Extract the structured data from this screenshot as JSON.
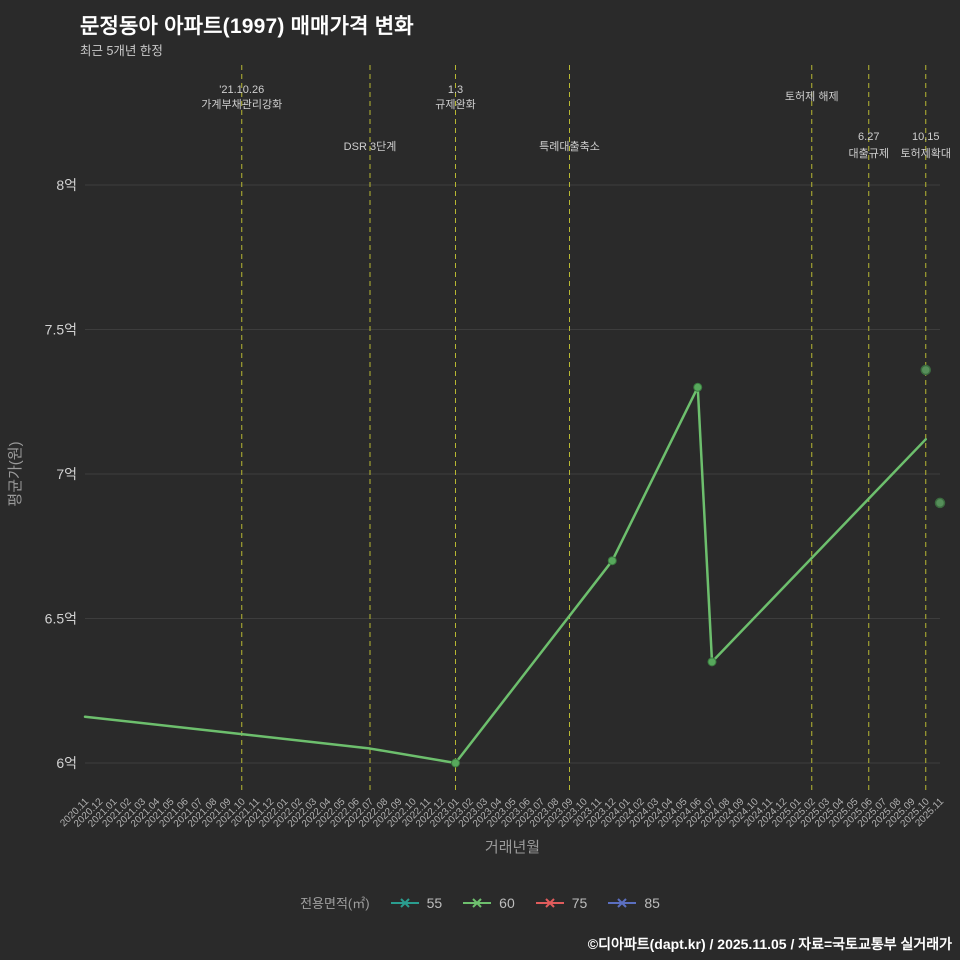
{
  "header": {
    "title": "문정동아 아파트(1997) 매매가격 변화",
    "subtitle": "최근 5개년 한정"
  },
  "footer": {
    "credit": "©디아파트(dapt.kr) / 2025.11.05 / 자료=국토교통부 실거래가"
  },
  "legend": {
    "label": "전용면적(㎡)",
    "position": "bottom",
    "items": [
      {
        "label": "55",
        "color": "#2a9d8f"
      },
      {
        "label": "60",
        "color": "#6dbf6d"
      },
      {
        "label": "75",
        "color": "#e05c5c"
      },
      {
        "label": "85",
        "color": "#5b6fc0"
      }
    ]
  },
  "chart_data": {
    "type": "line",
    "title": "문정동아 아파트(1997) 매매가격 변화",
    "subtitle": "최근 5개년 한정",
    "xlabel": "거래년월",
    "ylabel": "평균가(원)",
    "ylim": [
      5.9,
      8.2
    ],
    "grid": true,
    "yticks": [
      {
        "value": 6.0,
        "label": "6억"
      },
      {
        "value": 6.5,
        "label": "6.5억"
      },
      {
        "value": 7.0,
        "label": "7억"
      },
      {
        "value": 7.5,
        "label": "7.5억"
      },
      {
        "value": 8.0,
        "label": "8억"
      }
    ],
    "x_categories": [
      "2020.11",
      "2020.12",
      "2021.01",
      "2021.02",
      "2021.03",
      "2021.04",
      "2021.05",
      "2021.06",
      "2021.07",
      "2021.08",
      "2021.09",
      "2021.10",
      "2021.11",
      "2021.12",
      "2022.01",
      "2022.02",
      "2022.03",
      "2022.04",
      "2022.05",
      "2022.06",
      "2022.07",
      "2022.08",
      "2022.09",
      "2022.10",
      "2022.11",
      "2022.12",
      "2023.01",
      "2023.02",
      "2023.03",
      "2023.04",
      "2023.05",
      "2023.06",
      "2023.07",
      "2023.08",
      "2023.09",
      "2023.10",
      "2023.11",
      "2023.12",
      "2024.01",
      "2024.02",
      "2024.03",
      "2024.04",
      "2024.05",
      "2024.06",
      "2024.07",
      "2024.08",
      "2024.09",
      "2024.10",
      "2024.11",
      "2024.12",
      "2025.01",
      "2025.02",
      "2025.03",
      "2025.04",
      "2025.05",
      "2025.06",
      "2025.07",
      "2025.08",
      "2025.09",
      "2025.10",
      "2025.11"
    ],
    "series": [
      {
        "name": "60",
        "color": "#6dbf6d",
        "marker_fill": "#57a85c",
        "marker_stroke": "#3a7a3f",
        "points": [
          [
            "2020.11",
            6.16
          ],
          [
            "2021.10",
            6.1
          ],
          [
            "2022.07",
            6.05
          ],
          [
            "2023.01",
            6.0
          ],
          [
            "2023.12",
            6.7
          ],
          [
            "2024.06",
            7.3
          ],
          [
            "2024.07",
            6.35
          ],
          [
            "2025.10",
            7.12
          ]
        ],
        "marker_months": [
          "2023.01",
          "2023.12",
          "2024.06",
          "2024.07"
        ]
      },
      {
        "name": "55",
        "color": "#2a9d8f",
        "points": [],
        "marker_months": []
      },
      {
        "name": "75",
        "color": "#e05c5c",
        "points": [],
        "marker_months": []
      },
      {
        "name": "85",
        "color": "#5b6fc0",
        "points": [],
        "marker_months": []
      }
    ],
    "isolated_points": [
      {
        "month": "2025.10",
        "value": 7.36,
        "color": "#568f5a",
        "stroke": "#3b6b3f"
      },
      {
        "month": "2025.11",
        "value": 6.9,
        "color": "#568f5a",
        "stroke": "#3b6b3f"
      }
    ],
    "event_lines": [
      {
        "month": "2021.10",
        "lines": [
          "'21.10.26",
          "가계부채관리강화"
        ],
        "level": 0
      },
      {
        "month": "2022.07",
        "lines": [
          "DSR 3단계"
        ],
        "level": 1
      },
      {
        "month": "2023.01",
        "lines": [
          "1.3",
          "규제완화"
        ],
        "level": 0
      },
      {
        "month": "2023.09",
        "lines": [
          "특례대출축소"
        ],
        "level": 1
      },
      {
        "month": "2025.02",
        "lines": [
          "토허제 해제"
        ],
        "level": 0
      },
      {
        "month": "2025.06",
        "lines": [
          "6.27",
          "대출규제"
        ],
        "level": 2
      },
      {
        "month": "2025.10",
        "lines": [
          "10.15",
          "토허제확대"
        ],
        "level": 2
      }
    ],
    "colors": {
      "background": "#2a2a2a",
      "grid": "#3d3d3d",
      "event_line": "#b8b832",
      "x_tick": "#b2b2b2",
      "y_tick": "#d2d2d2",
      "axis_title": "#9a9a9a",
      "annotation": "#cfcfcf"
    }
  }
}
